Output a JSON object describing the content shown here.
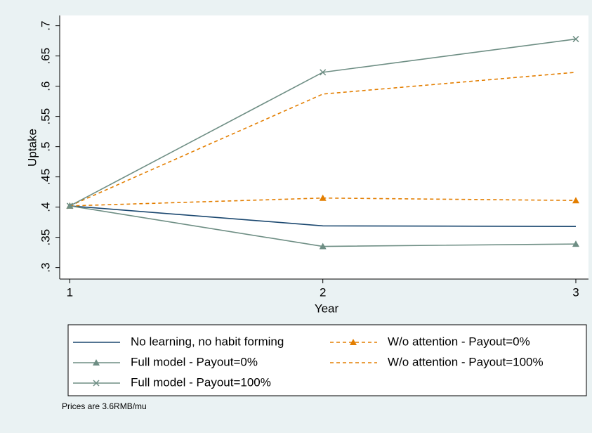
{
  "chart_data": {
    "type": "line",
    "x_label": "Year",
    "y_label": "Uptake",
    "note": "Prices are 3.6RMB/mu",
    "x": [
      1,
      2,
      3
    ],
    "xlim": [
      0.96,
      3.05
    ],
    "ylim": [
      0.281,
      0.717
    ],
    "xticks": [
      1,
      2,
      3
    ],
    "yticks": [
      {
        "value": 0.3,
        "label": ".3"
      },
      {
        "value": 0.35,
        "label": ".35"
      },
      {
        "value": 0.4,
        "label": ".4"
      },
      {
        "value": 0.45,
        "label": ".45"
      },
      {
        "value": 0.5,
        "label": ".5"
      },
      {
        "value": 0.55,
        "label": ".55"
      },
      {
        "value": 0.6,
        "label": ".6"
      },
      {
        "value": 0.65,
        "label": ".65"
      },
      {
        "value": 0.7,
        "label": ".7"
      }
    ],
    "series": [
      {
        "name": "No learning, no habit forming",
        "color": "#1a476f",
        "dashed": false,
        "marker": "none",
        "values": [
          0.402,
          0.369,
          0.368
        ]
      },
      {
        "name": "W/o attention - Payout=0%",
        "color": "#e37e00",
        "dashed": true,
        "marker": "triangle",
        "values": [
          0.402,
          0.415,
          0.411
        ]
      },
      {
        "name": "Full model - Payout=0%",
        "color": "#6e8e84",
        "dashed": false,
        "marker": "triangle",
        "values": [
          0.402,
          0.335,
          0.339
        ]
      },
      {
        "name": "W/o attention - Payout=100%",
        "color": "#e37e00",
        "dashed": true,
        "marker": "none",
        "values": [
          0.402,
          0.587,
          0.623
        ]
      },
      {
        "name": "Full model - Payout=100%",
        "color": "#6e8e84",
        "dashed": false,
        "marker": "x",
        "values": [
          0.402,
          0.623,
          0.678
        ]
      }
    ]
  }
}
